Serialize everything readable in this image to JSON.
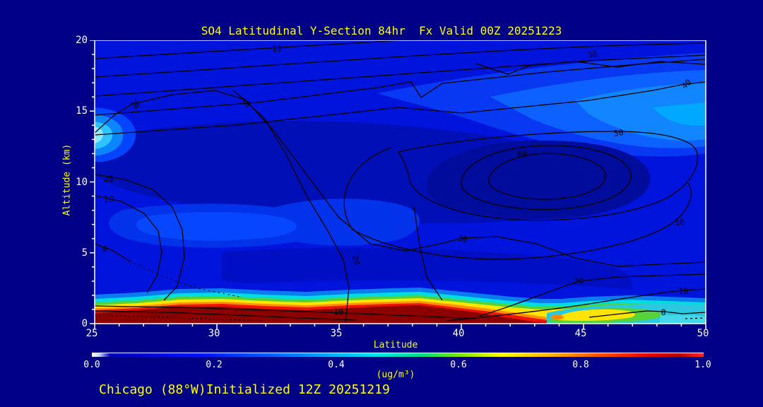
{
  "title": "SO4 Latitudinal Y-Section 84hr  Fx Valid 00Z 20251223",
  "footer": {
    "text": "Chicago (88°W)Initialized 12Z 20251219"
  },
  "chart_data": {
    "type": "filled-contour-cross-section",
    "title": "SO4 Latitudinal Y-Section 84hr  Fx Valid 00Z 20251223",
    "xlabel": "Latitude",
    "ylabel": "Altitude (km)",
    "xlim": [
      25,
      50
    ],
    "ylim": [
      0,
      20
    ],
    "x_ticks": [
      "25",
      "30",
      "35",
      "40",
      "45",
      "50"
    ],
    "x_minor_step": 1,
    "y_ticks": [
      "0",
      "5",
      "10",
      "15",
      "20"
    ],
    "y_minor_step": 1,
    "grid": false,
    "contour_line_interval": 10,
    "contour_labels": [
      {
        "value": "10",
        "lat": 32.46,
        "km": 19.4,
        "rot": 0
      },
      {
        "value": "30",
        "lat": 45.38,
        "km": 19.0,
        "rot": -12
      },
      {
        "value": "40",
        "lat": 49.28,
        "km": 16.96,
        "rot": -42
      },
      {
        "value": "20",
        "lat": 26.56,
        "km": 15.56,
        "rot": 52
      },
      {
        "value": "30",
        "lat": 31.1,
        "km": 15.61,
        "rot": 33
      },
      {
        "value": "50",
        "lat": 46.45,
        "km": 13.47,
        "rot": -8
      },
      {
        "value": "60",
        "lat": 42.49,
        "km": 11.97,
        "rot": 0
      },
      {
        "value": "20",
        "lat": 25.58,
        "km": 10.22,
        "rot": 0
      },
      {
        "value": "10",
        "lat": 25.58,
        "km": 8.78,
        "rot": 0
      },
      {
        "value": "0",
        "lat": 25.35,
        "km": 5.29,
        "rot": 28
      },
      {
        "value": "20",
        "lat": 35.58,
        "km": 4.64,
        "rot": 78
      },
      {
        "value": "30",
        "lat": 40.03,
        "km": 5.99,
        "rot": 12
      },
      {
        "value": "40",
        "lat": 48.96,
        "km": 7.13,
        "rot": -15
      },
      {
        "value": "10",
        "lat": 34.97,
        "km": 0.85,
        "rot": 0
      },
      {
        "value": "20",
        "lat": 44.8,
        "km": 2.99,
        "rot": 0
      },
      {
        "value": "10",
        "lat": 49.08,
        "km": 2.29,
        "rot": 0
      },
      {
        "value": "0",
        "lat": 48.27,
        "km": 0.8,
        "rot": 0
      }
    ],
    "colorbar": {
      "min": 0.0,
      "max": 1.0,
      "ticks": [
        "0.0",
        "0.2",
        "0.4",
        "0.6",
        "0.8",
        "1.0"
      ],
      "units_label": "(ug/m³)",
      "stops": [
        {
          "p": 0.0,
          "c": "#ffffff"
        },
        {
          "p": 0.012,
          "c": "#c8d8ff"
        },
        {
          "p": 0.03,
          "c": "#0000b4"
        },
        {
          "p": 0.18,
          "c": "#0014ff"
        },
        {
          "p": 0.3,
          "c": "#0064ff"
        },
        {
          "p": 0.4,
          "c": "#00b4ff"
        },
        {
          "p": 0.47,
          "c": "#00e6e6"
        },
        {
          "p": 0.54,
          "c": "#00dc82"
        },
        {
          "p": 0.6,
          "c": "#78e600"
        },
        {
          "p": 0.67,
          "c": "#ffff00"
        },
        {
          "p": 0.75,
          "c": "#ffb400"
        },
        {
          "p": 0.83,
          "c": "#ff5000"
        },
        {
          "p": 0.91,
          "c": "#e60000"
        },
        {
          "p": 0.96,
          "c": "#b40000"
        },
        {
          "p": 1.0,
          "c": "#ff2828"
        }
      ]
    },
    "field_summary": "Shaded SO4 concentration (ug/m3): boundary-layer maximum above 1.0 below about 1.5 km from 25N to about 44N; lofted plume near 1 km around 45-47N over cleaner surface air (0 contour near ground at 48N); broad mid-level relative maximum (60 contour) near 42-44N at 11-13 km; values decrease upward with 10-40 contours sloping up toward the north."
  },
  "colors": {
    "page_background": "#000087",
    "title_text": "#ffff00",
    "axis_label_text": "#ffff00",
    "tick_label_text": "#ffffff",
    "axis_line": "#ffffff",
    "contour_line": "#000000",
    "plot_base_fill": "#0114dc"
  }
}
